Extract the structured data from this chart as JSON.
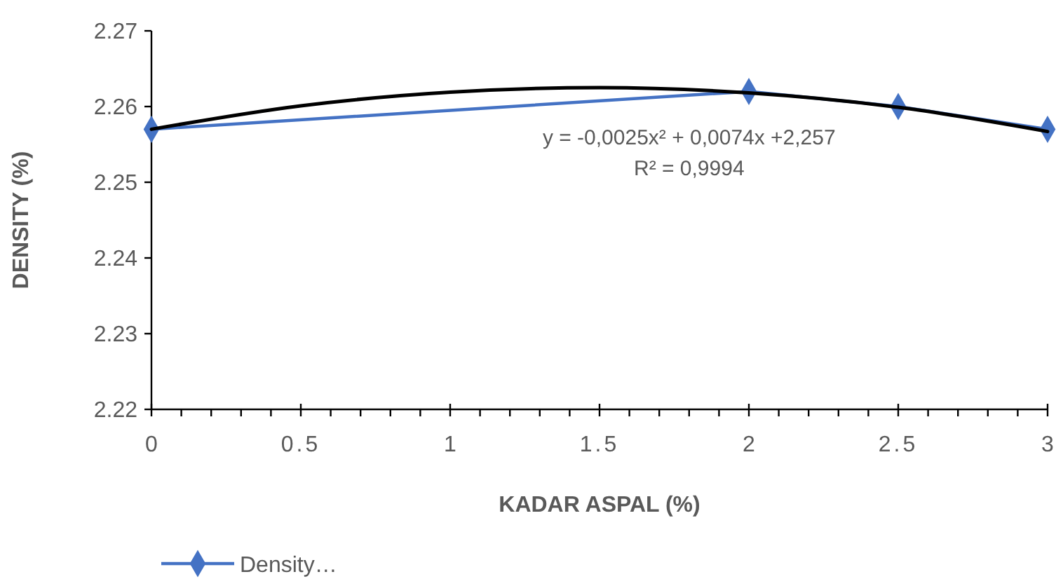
{
  "chart_data": {
    "type": "line",
    "xlabel": "KADAR ASPAL (%)",
    "ylabel": "DENSITY (%)",
    "xlim": [
      0,
      3
    ],
    "ylim": [
      2.22,
      2.27
    ],
    "xticks": [
      0,
      {
        "value": 0.1,
        "label": null
      },
      {
        "value": 0.2,
        "label": null
      },
      {
        "value": 0.3,
        "label": null
      },
      {
        "value": 0.4,
        "label": null
      },
      0.5,
      {
        "value": 0.6,
        "label": null
      },
      {
        "value": 0.7,
        "label": null
      },
      {
        "value": 0.8,
        "label": null
      },
      {
        "value": 0.9,
        "label": null
      },
      1,
      {
        "value": 1.1,
        "label": null
      },
      {
        "value": 1.2,
        "label": null
      },
      {
        "value": 1.3,
        "label": null
      },
      {
        "value": 1.4,
        "label": null
      },
      1.5,
      {
        "value": 1.6,
        "label": null
      },
      {
        "value": 1.7,
        "label": null
      },
      {
        "value": 1.8,
        "label": null
      },
      {
        "value": 1.9,
        "label": null
      },
      2,
      {
        "value": 2.1,
        "label": null
      },
      {
        "value": 2.2,
        "label": null
      },
      {
        "value": 2.3,
        "label": null
      },
      {
        "value": 2.4,
        "label": null
      },
      2.5,
      {
        "value": 2.6,
        "label": null
      },
      {
        "value": 2.7,
        "label": null
      },
      {
        "value": 2.8,
        "label": null
      },
      {
        "value": 2.9,
        "label": null
      },
      3
    ],
    "yticks": [
      2.22,
      2.23,
      2.24,
      2.25,
      2.26,
      2.27
    ],
    "grid": false,
    "legend": "bottom left",
    "annotations": [
      "y = -0,0025x² + 0,0074x +2,257",
      "R² = 0,9994"
    ],
    "series": [
      {
        "name": "Density…",
        "color": "#4472c4",
        "marker": "diamond",
        "x": [
          0,
          2,
          2.5,
          3
        ],
        "values": [
          2.257,
          2.262,
          2.26,
          2.257
        ]
      },
      {
        "type": "line",
        "color": "#000000",
        "marker": "none",
        "x": [
          0,
          0.5,
          1,
          1.5,
          2,
          2.5,
          3
        ],
        "values": [
          2.257,
          2.2601,
          2.2619,
          2.2625,
          2.2618,
          2.2599,
          2.2567
        ]
      }
    ]
  }
}
